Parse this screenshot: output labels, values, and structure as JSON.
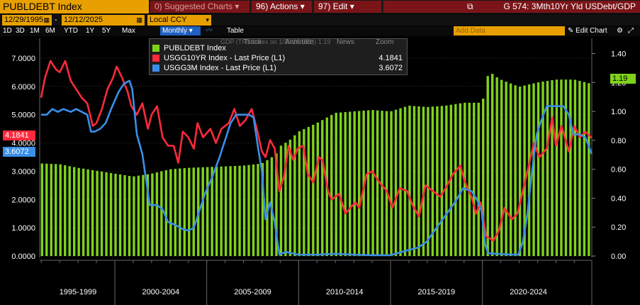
{
  "toolbar": {
    "ticker": "PUBLDEBT Index",
    "suggested": "Suggested Charts",
    "suggested_key": "0)",
    "actions": "Actions",
    "actions_key": "96)",
    "edit": "Edit",
    "edit_key": "97)",
    "chart_title": "G 574: 3Mth10Yr Yld USDebt/GDP"
  },
  "range": {
    "start": "12/29/1995",
    "end": "12/12/2025",
    "currency": "Local CCY",
    "periods": [
      "1D",
      "3D",
      "1M",
      "6M",
      "YTD",
      "1Y",
      "5Y",
      "Max"
    ],
    "frequency": "Monthly",
    "table_label": "Table",
    "add_data_placeholder": "Add Data",
    "edit_chart": "Edit Chart"
  },
  "legend": {
    "tools": [
      "Track",
      "Annotate",
      "News",
      "Zoom"
    ],
    "hidden_text": "GDP (TRS Index on 1/30/25 (R1))",
    "hidden_value": "1.19",
    "items": [
      {
        "name": "PUBLDEBT Index",
        "value": "",
        "color": "#7fd21a"
      },
      {
        "name": "USGG10YR Index - Last Price (L1)",
        "value": "4.1841",
        "color": "#ff2a3c"
      },
      {
        "name": "USGG3M Index - Last Price (L1)",
        "value": "3.6072",
        "color": "#3a8fe8"
      }
    ]
  },
  "tags": {
    "left_red": "4.1841",
    "left_blue": "3.6072",
    "right_green": "1.19"
  },
  "colors": {
    "debt": "#7fd21a",
    "yield10": "#ff2a3c",
    "yield3m": "#3a8fe8",
    "orange": "#e8a000",
    "header_red": "#7a1418"
  },
  "chart_data": {
    "type": "bar+line",
    "left_axis": {
      "ticks": [
        "0.0000",
        "1.0000",
        "2.0000",
        "3.0000",
        "4.0000",
        "5.0000",
        "6.0000",
        "7.0000"
      ],
      "range": [
        0,
        7.6
      ]
    },
    "right_axis": {
      "ticks": [
        "0.00",
        "0.20",
        "0.40",
        "0.60",
        "0.80",
        "1.00",
        "1.20",
        "1.40"
      ],
      "range": [
        0,
        1.4857
      ]
    },
    "x_range": [
      1995.99,
      2025.95
    ],
    "x_groups": [
      {
        "label": "1995-1999",
        "from": 1995.99,
        "to": 2000.0
      },
      {
        "label": "2000-2004",
        "from": 2000.0,
        "to": 2005.0
      },
      {
        "label": "2005-2009",
        "from": 2005.0,
        "to": 2010.0
      },
      {
        "label": "2010-2014",
        "from": 2010.0,
        "to": 2015.0
      },
      {
        "label": "2015-2019",
        "from": 2015.0,
        "to": 2020.0
      },
      {
        "label": "2020-2024",
        "from": 2020.0,
        "to": 2025.0
      }
    ],
    "series": [
      {
        "name": "PUBLDEBT Index",
        "axis": "right",
        "style": "bar",
        "points": [
          [
            1996.0,
            0.64
          ],
          [
            1997.0,
            0.635
          ],
          [
            1998.0,
            0.61
          ],
          [
            1999.0,
            0.59
          ],
          [
            2000.0,
            0.57
          ],
          [
            2001.0,
            0.55
          ],
          [
            2002.0,
            0.57
          ],
          [
            2003.0,
            0.6
          ],
          [
            2004.0,
            0.61
          ],
          [
            2005.0,
            0.615
          ],
          [
            2006.0,
            0.62
          ],
          [
            2007.0,
            0.625
          ],
          [
            2008.0,
            0.64
          ],
          [
            2008.75,
            0.7
          ],
          [
            2009.0,
            0.76
          ],
          [
            2009.5,
            0.8
          ],
          [
            2010.0,
            0.86
          ],
          [
            2011.0,
            0.92
          ],
          [
            2012.0,
            0.99
          ],
          [
            2013.0,
            1.0
          ],
          [
            2014.0,
            1.01
          ],
          [
            2015.0,
            1.0
          ],
          [
            2016.0,
            1.04
          ],
          [
            2017.0,
            1.03
          ],
          [
            2018.0,
            1.04
          ],
          [
            2019.0,
            1.06
          ],
          [
            2019.9,
            1.06
          ],
          [
            2020.1,
            1.1
          ],
          [
            2020.35,
            1.29
          ],
          [
            2020.6,
            1.25
          ],
          [
            2021.0,
            1.22
          ],
          [
            2022.0,
            1.17
          ],
          [
            2023.0,
            1.2
          ],
          [
            2024.0,
            1.22
          ],
          [
            2025.0,
            1.22
          ],
          [
            2025.95,
            1.19
          ]
        ]
      },
      {
        "name": "USGG10YR Index - Last Price (L1)",
        "axis": "left",
        "style": "line",
        "points": [
          [
            1995.99,
            5.6
          ],
          [
            1996.2,
            6.3
          ],
          [
            1996.5,
            6.9
          ],
          [
            1996.8,
            6.6
          ],
          [
            1997.0,
            6.5
          ],
          [
            1997.3,
            6.9
          ],
          [
            1997.6,
            6.2
          ],
          [
            1997.9,
            5.9
          ],
          [
            1998.2,
            5.6
          ],
          [
            1998.5,
            5.4
          ],
          [
            1998.8,
            4.6
          ],
          [
            1999.0,
            4.7
          ],
          [
            1999.3,
            5.2
          ],
          [
            1999.6,
            5.9
          ],
          [
            1999.9,
            6.3
          ],
          [
            2000.1,
            6.7
          ],
          [
            2000.4,
            6.3
          ],
          [
            2000.7,
            5.8
          ],
          [
            2000.9,
            5.3
          ],
          [
            2001.2,
            5.0
          ],
          [
            2001.5,
            5.4
          ],
          [
            2001.8,
            4.5
          ],
          [
            2002.0,
            5.0
          ],
          [
            2002.3,
            5.3
          ],
          [
            2002.6,
            4.2
          ],
          [
            2002.9,
            3.9
          ],
          [
            2003.2,
            3.9
          ],
          [
            2003.45,
            3.3
          ],
          [
            2003.7,
            4.4
          ],
          [
            2004.0,
            4.2
          ],
          [
            2004.3,
            3.8
          ],
          [
            2004.5,
            4.7
          ],
          [
            2004.8,
            4.2
          ],
          [
            2005.2,
            4.5
          ],
          [
            2005.5,
            4.0
          ],
          [
            2005.8,
            4.5
          ],
          [
            2006.2,
            4.7
          ],
          [
            2006.5,
            5.2
          ],
          [
            2006.8,
            4.6
          ],
          [
            2007.1,
            4.8
          ],
          [
            2007.45,
            5.2
          ],
          [
            2007.8,
            4.3
          ],
          [
            2008.0,
            3.7
          ],
          [
            2008.2,
            3.5
          ],
          [
            2008.45,
            4.1
          ],
          [
            2008.7,
            3.8
          ],
          [
            2008.95,
            2.3
          ],
          [
            2009.2,
            2.8
          ],
          [
            2009.45,
            3.9
          ],
          [
            2009.7,
            3.4
          ],
          [
            2009.95,
            3.8
          ],
          [
            2010.25,
            3.9
          ],
          [
            2010.5,
            2.9
          ],
          [
            2010.8,
            2.6
          ],
          [
            2011.1,
            3.5
          ],
          [
            2011.3,
            3.4
          ],
          [
            2011.6,
            2.3
          ],
          [
            2011.8,
            2.0
          ],
          [
            2012.2,
            2.2
          ],
          [
            2012.55,
            1.5
          ],
          [
            2012.8,
            1.7
          ],
          [
            2013.1,
            1.9
          ],
          [
            2013.3,
            1.7
          ],
          [
            2013.7,
            2.9
          ],
          [
            2014.0,
            3.0
          ],
          [
            2014.4,
            2.6
          ],
          [
            2014.8,
            2.3
          ],
          [
            2015.1,
            1.7
          ],
          [
            2015.5,
            2.4
          ],
          [
            2015.9,
            2.3
          ],
          [
            2016.2,
            1.8
          ],
          [
            2016.55,
            1.4
          ],
          [
            2016.9,
            2.5
          ],
          [
            2017.3,
            2.3
          ],
          [
            2017.7,
            2.1
          ],
          [
            2018.0,
            2.4
          ],
          [
            2018.4,
            2.9
          ],
          [
            2018.8,
            3.2
          ],
          [
            2019.0,
            2.7
          ],
          [
            2019.4,
            2.1
          ],
          [
            2019.65,
            1.5
          ],
          [
            2019.9,
            1.9
          ],
          [
            2020.2,
            0.7
          ],
          [
            2020.6,
            0.55
          ],
          [
            2020.9,
            0.9
          ],
          [
            2021.2,
            1.7
          ],
          [
            2021.6,
            1.3
          ],
          [
            2021.9,
            1.5
          ],
          [
            2022.2,
            2.3
          ],
          [
            2022.45,
            3.0
          ],
          [
            2022.8,
            4.0
          ],
          [
            2023.1,
            3.5
          ],
          [
            2023.5,
            3.8
          ],
          [
            2023.8,
            4.9
          ],
          [
            2024.0,
            3.9
          ],
          [
            2024.3,
            4.6
          ],
          [
            2024.7,
            3.7
          ],
          [
            2025.0,
            4.6
          ],
          [
            2025.3,
            4.2
          ],
          [
            2025.6,
            4.4
          ],
          [
            2025.95,
            4.18
          ]
        ]
      },
      {
        "name": "USGG3M Index - Last Price (L1)",
        "axis": "left",
        "style": "line",
        "points": [
          [
            1995.99,
            5.0
          ],
          [
            1996.3,
            5.0
          ],
          [
            1996.6,
            5.2
          ],
          [
            1996.9,
            5.1
          ],
          [
            1997.2,
            5.2
          ],
          [
            1997.6,
            5.1
          ],
          [
            1997.9,
            5.2
          ],
          [
            1998.2,
            5.1
          ],
          [
            1998.5,
            5.0
          ],
          [
            1998.7,
            4.4
          ],
          [
            1998.9,
            4.4
          ],
          [
            1999.2,
            4.5
          ],
          [
            1999.5,
            4.7
          ],
          [
            1999.8,
            5.2
          ],
          [
            2000.2,
            5.8
          ],
          [
            2000.5,
            6.1
          ],
          [
            2000.8,
            6.2
          ],
          [
            2000.95,
            5.9
          ],
          [
            2001.2,
            4.3
          ],
          [
            2001.5,
            3.6
          ],
          [
            2001.9,
            1.8
          ],
          [
            2002.3,
            1.8
          ],
          [
            2002.6,
            1.65
          ],
          [
            2002.9,
            1.2
          ],
          [
            2003.3,
            1.1
          ],
          [
            2003.7,
            0.95
          ],
          [
            2004.0,
            0.9
          ],
          [
            2004.3,
            1.0
          ],
          [
            2004.6,
            1.6
          ],
          [
            2004.9,
            2.2
          ],
          [
            2005.3,
            2.8
          ],
          [
            2005.7,
            3.5
          ],
          [
            2005.95,
            4.0
          ],
          [
            2006.3,
            4.7
          ],
          [
            2006.6,
            5.0
          ],
          [
            2006.9,
            5.0
          ],
          [
            2007.3,
            5.0
          ],
          [
            2007.55,
            4.9
          ],
          [
            2007.8,
            3.8
          ],
          [
            2008.0,
            3.0
          ],
          [
            2008.2,
            1.3
          ],
          [
            2008.45,
            1.9
          ],
          [
            2008.7,
            1.2
          ],
          [
            2008.95,
            0.05
          ],
          [
            2009.3,
            0.15
          ],
          [
            2009.6,
            0.1
          ],
          [
            2010.0,
            0.05
          ],
          [
            2011.0,
            0.05
          ],
          [
            2012.0,
            0.08
          ],
          [
            2013.0,
            0.05
          ],
          [
            2014.0,
            0.03
          ],
          [
            2015.0,
            0.03
          ],
          [
            2015.9,
            0.2
          ],
          [
            2016.5,
            0.3
          ],
          [
            2016.95,
            0.5
          ],
          [
            2017.5,
            1.0
          ],
          [
            2017.95,
            1.4
          ],
          [
            2018.5,
            1.9
          ],
          [
            2018.95,
            2.4
          ],
          [
            2019.4,
            2.3
          ],
          [
            2019.7,
            2.0
          ],
          [
            2019.95,
            1.6
          ],
          [
            2020.15,
            0.4
          ],
          [
            2020.3,
            0.1
          ],
          [
            2020.8,
            0.08
          ],
          [
            2021.5,
            0.05
          ],
          [
            2021.95,
            0.05
          ],
          [
            2022.2,
            0.5
          ],
          [
            2022.45,
            1.5
          ],
          [
            2022.7,
            3.0
          ],
          [
            2022.95,
            4.3
          ],
          [
            2023.2,
            4.8
          ],
          [
            2023.5,
            5.3
          ],
          [
            2023.9,
            5.3
          ],
          [
            2024.4,
            5.3
          ],
          [
            2024.7,
            5.0
          ],
          [
            2024.95,
            4.3
          ],
          [
            2025.3,
            4.3
          ],
          [
            2025.6,
            4.2
          ],
          [
            2025.95,
            3.61
          ]
        ]
      }
    ]
  }
}
